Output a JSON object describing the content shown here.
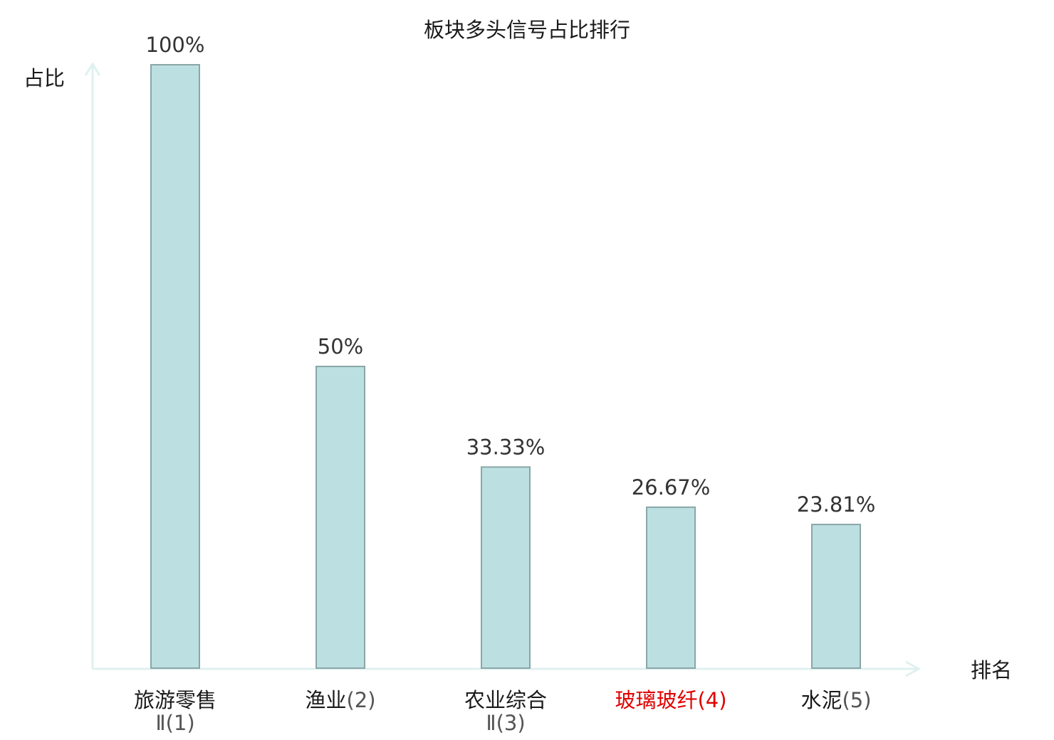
{
  "chart_data": {
    "type": "bar",
    "title": "板块多头信号占比排行",
    "ylabel": "占比",
    "xlabel": "排名",
    "categories": [
      {
        "name": "旅游零售",
        "rank": "Ⅱ(1)",
        "line2": true,
        "highlight": false
      },
      {
        "name": "渔业",
        "rank": "(2)",
        "line2": false,
        "highlight": false
      },
      {
        "name": "农业综合",
        "rank": "Ⅱ(3)",
        "line2": true,
        "highlight": false
      },
      {
        "name": "玻璃玻纤",
        "rank": "(4)",
        "line2": false,
        "highlight": true
      },
      {
        "name": "水泥",
        "rank": "(5)",
        "line2": false,
        "highlight": false
      }
    ],
    "values": [
      100,
      50,
      33.33,
      26.67,
      23.81
    ],
    "value_labels": [
      "100%",
      "50%",
      "33.33%",
      "26.67%",
      "23.81%"
    ],
    "ylim": [
      0,
      100
    ],
    "grid": false,
    "legend": "none"
  },
  "colors": {
    "bar_fill": "#bce0e2",
    "bar_stroke": "#8aa6a6",
    "axis": "#dff1ef",
    "text": "#1a1a1a",
    "value_text": "#333333",
    "highlight": "#e00000",
    "rank_text": "#555555"
  }
}
